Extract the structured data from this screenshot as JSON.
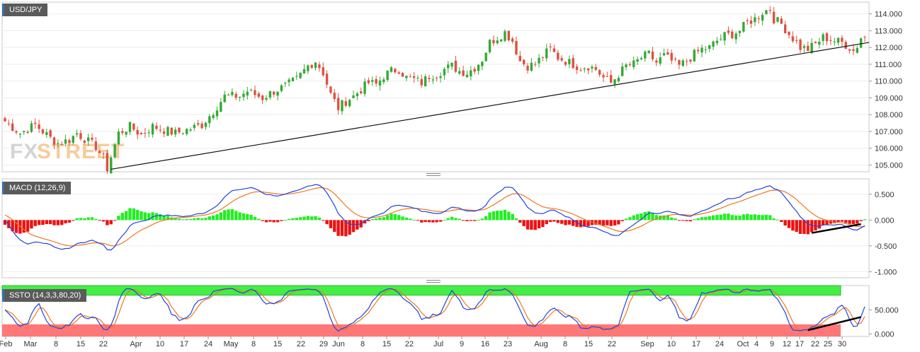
{
  "chart_data": [
    {
      "type": "candlestick",
      "title": "USD/JPY",
      "x_ticks": [
        "Feb",
        "Mar",
        "8",
        "15",
        "22",
        "Apr",
        "10",
        "17",
        "24",
        "May",
        "8",
        "15",
        "22",
        "29",
        "Jun",
        "8",
        "15",
        "22",
        "Jul",
        "9",
        "16",
        "23",
        "Aug",
        "8",
        "15",
        "22",
        "Sep",
        "10",
        "17",
        "24",
        "Oct",
        "4",
        "9",
        "12",
        "17",
        "22",
        "25",
        "30"
      ],
      "y_ticks": [
        "114.000",
        "113.000",
        "112.000",
        "111.000",
        "110.000",
        "109.000",
        "108.000",
        "107.000",
        "106.000",
        "105.000"
      ],
      "ylim": [
        104.6,
        114.7
      ],
      "close_path": [
        [
          0,
          107.6
        ],
        [
          4,
          106.9
        ],
        [
          8,
          107.4
        ],
        [
          12,
          106.6
        ],
        [
          14,
          106.3
        ],
        [
          17,
          106.5
        ],
        [
          19,
          106.9
        ],
        [
          22,
          106.4
        ],
        [
          24,
          106.1
        ],
        [
          26,
          105.4
        ],
        [
          27,
          104.8
        ],
        [
          30,
          106.9
        ],
        [
          33,
          107.3
        ],
        [
          36,
          106.8
        ],
        [
          39,
          107.3
        ],
        [
          42,
          107.1
        ],
        [
          45,
          106.9
        ],
        [
          48,
          107.1
        ],
        [
          52,
          107.4
        ],
        [
          55,
          108.2
        ],
        [
          58,
          109.1
        ],
        [
          62,
          109.1
        ],
        [
          64,
          109.4
        ],
        [
          66,
          109.2
        ],
        [
          68,
          109.0
        ],
        [
          71,
          109.4
        ],
        [
          74,
          109.7
        ],
        [
          77,
          110.1
        ],
        [
          80,
          110.9
        ],
        [
          82,
          111.2
        ],
        [
          84,
          110.5
        ],
        [
          86,
          109.2
        ],
        [
          88,
          108.4
        ],
        [
          90,
          108.8
        ],
        [
          92,
          109.1
        ],
        [
          94,
          109.5
        ],
        [
          96,
          109.9
        ],
        [
          98,
          109.8
        ],
        [
          100,
          110.3
        ],
        [
          102,
          110.6
        ],
        [
          104,
          110.7
        ],
        [
          106,
          110.2
        ],
        [
          108,
          110.1
        ],
        [
          110,
          109.9
        ],
        [
          112,
          110.3
        ],
        [
          114,
          110.4
        ],
        [
          116,
          110.7
        ],
        [
          118,
          110.9
        ],
        [
          120,
          110.6
        ],
        [
          122,
          110.5
        ],
        [
          124,
          110.8
        ],
        [
          126,
          111.3
        ],
        [
          128,
          112.3
        ],
        [
          130,
          112.6
        ],
        [
          132,
          112.9
        ],
        [
          134,
          112.4
        ],
        [
          136,
          111.2
        ],
        [
          138,
          110.9
        ],
        [
          140,
          111.0
        ],
        [
          142,
          111.5
        ],
        [
          144,
          111.9
        ],
        [
          146,
          111.4
        ],
        [
          148,
          111.2
        ],
        [
          150,
          111.0
        ],
        [
          152,
          110.8
        ],
        [
          154,
          110.9
        ],
        [
          156,
          110.7
        ],
        [
          158,
          110.2
        ],
        [
          160,
          109.9
        ],
        [
          162,
          110.4
        ],
        [
          164,
          110.9
        ],
        [
          166,
          111.0
        ],
        [
          168,
          111.4
        ],
        [
          170,
          111.6
        ],
        [
          172,
          111.1
        ],
        [
          174,
          111.5
        ],
        [
          176,
          111.2
        ],
        [
          178,
          110.9
        ],
        [
          180,
          111.2
        ],
        [
          182,
          111.6
        ],
        [
          184,
          111.9
        ],
        [
          186,
          112.0
        ],
        [
          188,
          112.4
        ],
        [
          190,
          112.7
        ],
        [
          192,
          112.8
        ],
        [
          194,
          113.0
        ],
        [
          196,
          113.5
        ],
        [
          198,
          113.7
        ],
        [
          200,
          114.1
        ],
        [
          202,
          114.3
        ],
        [
          203,
          113.7
        ],
        [
          205,
          113.4
        ],
        [
          207,
          112.8
        ],
        [
          209,
          112.3
        ],
        [
          210,
          112.0
        ],
        [
          212,
          111.9
        ],
        [
          214,
          112.2
        ],
        [
          216,
          112.6
        ],
        [
          218,
          112.5
        ],
        [
          219,
          112.4
        ],
        [
          221,
          112.3
        ],
        [
          223,
          112.0
        ],
        [
          224,
          111.8
        ],
        [
          225,
          112.1
        ],
        [
          226,
          112.6
        ]
      ]
    },
    {
      "type": "line+bar",
      "title": "MACD (12,26,9)",
      "y_ticks": [
        "0.500",
        "0.000",
        "-0.500",
        "-1.000"
      ],
      "ylim": [
        -1.12,
        0.8
      ]
    },
    {
      "type": "line",
      "title": "SSTO (14,3,3,80,20)",
      "y_ticks": [
        "50.000",
        "0.000"
      ],
      "ylim": [
        -5,
        100
      ],
      "levels": [
        20,
        80
      ]
    }
  ],
  "colors": {
    "up": "#33aa33",
    "down": "#e05040",
    "macd_line": "#2244dd",
    "signal_line": "#ee7722",
    "hist_up": "#22ee22",
    "hist_down": "#ee1111",
    "overbought": "#44ee44",
    "oversold": "#ff7777"
  },
  "watermark": "FXSTREET"
}
